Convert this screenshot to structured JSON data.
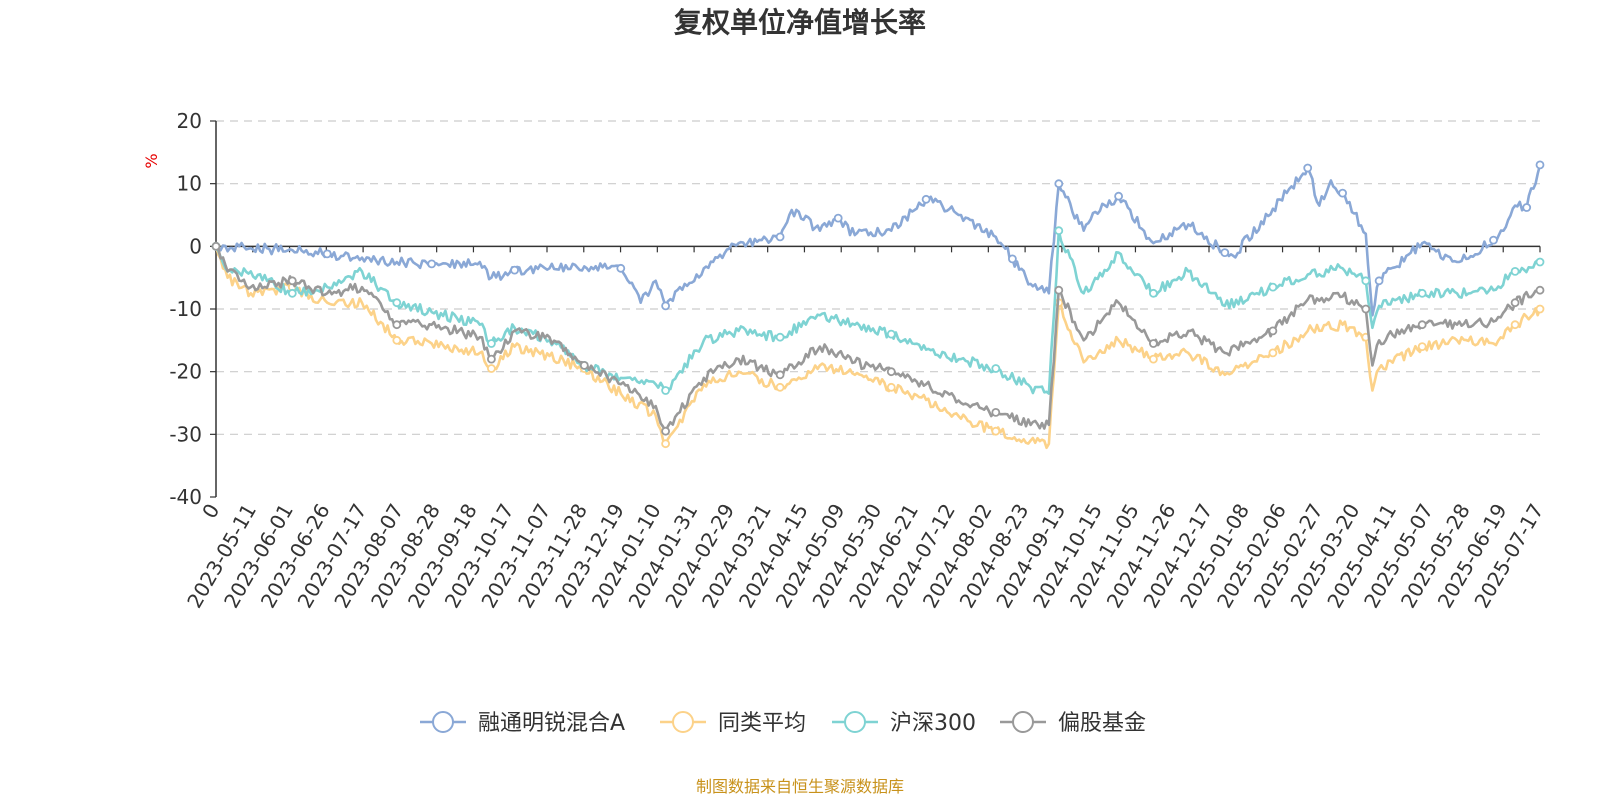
{
  "chart_data": {
    "type": "line",
    "title": "复权单位净值增长率",
    "ylabel": "%",
    "ylim": [
      -40,
      20
    ],
    "yticks": [
      20,
      10,
      0,
      -10,
      -20,
      -30,
      -40
    ],
    "grid": true,
    "legend_position": "bottom",
    "source": "制图数据来自恒生聚源数据库",
    "x_start": "2023-05-11",
    "x_end": "2025-07-17",
    "x_tick_labels": [
      "0",
      "2023-05-11",
      "2023-06-01",
      "2023-06-26",
      "2023-07-17",
      "2023-08-07",
      "2023-08-28",
      "2023-09-18",
      "2023-10-17",
      "2023-11-07",
      "2023-11-28",
      "2023-12-19",
      "2024-01-10",
      "2024-01-31",
      "2024-02-29",
      "2024-03-21",
      "2024-04-15",
      "2024-05-09",
      "2024-05-30",
      "2024-06-21",
      "2024-07-12",
      "2024-08-02",
      "2024-08-23",
      "2024-09-13",
      "2024-10-15",
      "2024-11-05",
      "2024-11-26",
      "2024-12-17",
      "2025-01-08",
      "2025-02-06",
      "2025-02-27",
      "2025-03-20",
      "2025-04-11",
      "2025-05-07",
      "2025-05-28",
      "2025-06-19",
      "2025-07-17"
    ],
    "series": [
      {
        "name": "融通明锐混合A",
        "color": "#8aa8d6",
        "points": [
          [
            "2023-05-11",
            0
          ],
          [
            "2023-06-01",
            -0.3
          ],
          [
            "2023-06-26",
            -0.6
          ],
          [
            "2023-07-17",
            -1.2
          ],
          [
            "2023-08-07",
            -1.8
          ],
          [
            "2023-08-28",
            -2.5
          ],
          [
            "2023-09-18",
            -2.8
          ],
          [
            "2023-10-17",
            -2.5
          ],
          [
            "2023-10-24",
            -5
          ],
          [
            "2023-11-07",
            -3.8
          ],
          [
            "2023-11-28",
            -3.5
          ],
          [
            "2023-12-19",
            -3.2
          ],
          [
            "2024-01-10",
            -3.5
          ],
          [
            "2024-01-22",
            -9
          ],
          [
            "2024-01-31",
            -5.5
          ],
          [
            "2024-02-06",
            -9.5
          ],
          [
            "2024-02-29",
            -3.5
          ],
          [
            "2024-03-21",
            0.5
          ],
          [
            "2024-04-15",
            1.5
          ],
          [
            "2024-04-22",
            5.8
          ],
          [
            "2024-05-09",
            2.5
          ],
          [
            "2024-05-20",
            4.5
          ],
          [
            "2024-05-30",
            1.8
          ],
          [
            "2024-06-21",
            2.5
          ],
          [
            "2024-07-12",
            7.5
          ],
          [
            "2024-08-02",
            5
          ],
          [
            "2024-08-23",
            1.5
          ],
          [
            "2024-09-02",
            -2
          ],
          [
            "2024-09-13",
            -6
          ],
          [
            "2024-09-24",
            -7.5
          ],
          [
            "2024-09-30",
            10
          ],
          [
            "2024-10-15",
            2.5
          ],
          [
            "2024-10-22",
            5.5
          ],
          [
            "2024-11-05",
            8
          ],
          [
            "2024-11-26",
            0.5
          ],
          [
            "2024-12-17",
            3.5
          ],
          [
            "2025-01-08",
            -1
          ],
          [
            "2025-01-13",
            -1.5
          ],
          [
            "2025-02-06",
            6
          ],
          [
            "2025-02-27",
            12.5
          ],
          [
            "2025-03-06",
            6.5
          ],
          [
            "2025-03-13",
            10.5
          ],
          [
            "2025-03-20",
            8.5
          ],
          [
            "2025-04-03",
            2
          ],
          [
            "2025-04-07",
            -11
          ],
          [
            "2025-04-11",
            -5.5
          ],
          [
            "2025-05-07",
            0.5
          ],
          [
            "2025-05-28",
            -2.5
          ],
          [
            "2025-06-19",
            1
          ],
          [
            "2025-06-25",
            2.5
          ],
          [
            "2025-07-02",
            6.5
          ],
          [
            "2025-07-09",
            6.2
          ],
          [
            "2025-07-17",
            13
          ]
        ]
      },
      {
        "name": "同类平均",
        "color": "#fcd289",
        "points": [
          [
            "2023-05-11",
            0
          ],
          [
            "2023-05-18",
            -5
          ],
          [
            "2023-06-01",
            -7.5
          ],
          [
            "2023-06-26",
            -6.5
          ],
          [
            "2023-07-17",
            -9
          ],
          [
            "2023-08-07",
            -9
          ],
          [
            "2023-08-28",
            -15
          ],
          [
            "2023-09-18",
            -15.5
          ],
          [
            "2023-10-17",
            -17
          ],
          [
            "2023-10-24",
            -19.5
          ],
          [
            "2023-11-07",
            -16
          ],
          [
            "2023-11-28",
            -17.5
          ],
          [
            "2023-12-19",
            -19.5
          ],
          [
            "2024-01-10",
            -23.5
          ],
          [
            "2024-01-31",
            -27
          ],
          [
            "2024-02-06",
            -31.5
          ],
          [
            "2024-02-29",
            -22
          ],
          [
            "2024-03-21",
            -20
          ],
          [
            "2024-04-15",
            -22.5
          ],
          [
            "2024-05-09",
            -19
          ],
          [
            "2024-05-30",
            -20.5
          ],
          [
            "2024-06-21",
            -22.5
          ],
          [
            "2024-07-12",
            -24.5
          ],
          [
            "2024-08-02",
            -27.5
          ],
          [
            "2024-08-23",
            -29.5
          ],
          [
            "2024-09-13",
            -31
          ],
          [
            "2024-09-24",
            -31.5
          ],
          [
            "2024-09-30",
            -9
          ],
          [
            "2024-10-15",
            -18.5
          ],
          [
            "2024-11-05",
            -15
          ],
          [
            "2024-11-26",
            -18
          ],
          [
            "2024-12-17",
            -17
          ],
          [
            "2025-01-08",
            -20.5
          ],
          [
            "2025-02-06",
            -17
          ],
          [
            "2025-02-27",
            -13.5
          ],
          [
            "2025-03-20",
            -12.5
          ],
          [
            "2025-04-03",
            -14.5
          ],
          [
            "2025-04-07",
            -23
          ],
          [
            "2025-04-11",
            -19.5
          ],
          [
            "2025-05-07",
            -16
          ],
          [
            "2025-05-28",
            -15
          ],
          [
            "2025-06-19",
            -15.5
          ],
          [
            "2025-07-02",
            -12.5
          ],
          [
            "2025-07-17",
            -10
          ]
        ]
      },
      {
        "name": "沪深300",
        "color": "#7ed3d3",
        "points": [
          [
            "2023-05-11",
            0
          ],
          [
            "2023-05-18",
            -4
          ],
          [
            "2023-06-01",
            -4
          ],
          [
            "2023-06-26",
            -7.5
          ],
          [
            "2023-07-17",
            -6.5
          ],
          [
            "2023-08-07",
            -4
          ],
          [
            "2023-08-28",
            -9
          ],
          [
            "2023-09-18",
            -10.5
          ],
          [
            "2023-10-17",
            -12.5
          ],
          [
            "2023-10-24",
            -15.5
          ],
          [
            "2023-11-07",
            -13
          ],
          [
            "2023-11-28",
            -15
          ],
          [
            "2023-12-19",
            -19
          ],
          [
            "2024-01-10",
            -21
          ],
          [
            "2024-01-31",
            -22
          ],
          [
            "2024-02-06",
            -23
          ],
          [
            "2024-02-29",
            -15
          ],
          [
            "2024-03-21",
            -13.5
          ],
          [
            "2024-04-15",
            -14.5
          ],
          [
            "2024-05-09",
            -11
          ],
          [
            "2024-05-30",
            -12.5
          ],
          [
            "2024-06-21",
            -14
          ],
          [
            "2024-07-12",
            -16.5
          ],
          [
            "2024-08-02",
            -18
          ],
          [
            "2024-08-23",
            -19.5
          ],
          [
            "2024-09-13",
            -22.5
          ],
          [
            "2024-09-24",
            -23.5
          ],
          [
            "2024-09-30",
            2.5
          ],
          [
            "2024-10-15",
            -7.5
          ],
          [
            "2024-11-05",
            -1
          ],
          [
            "2024-11-26",
            -7.5
          ],
          [
            "2024-12-17",
            -4
          ],
          [
            "2025-01-08",
            -9.5
          ],
          [
            "2025-02-06",
            -6.5
          ],
          [
            "2025-02-27",
            -4.5
          ],
          [
            "2025-03-20",
            -3.5
          ],
          [
            "2025-04-03",
            -5.5
          ],
          [
            "2025-04-07",
            -13
          ],
          [
            "2025-04-11",
            -9.5
          ],
          [
            "2025-05-07",
            -7.5
          ],
          [
            "2025-05-28",
            -7.5
          ],
          [
            "2025-06-19",
            -7
          ],
          [
            "2025-07-02",
            -4
          ],
          [
            "2025-07-17",
            -2.5
          ]
        ]
      },
      {
        "name": "偏股基金",
        "color": "#999999",
        "points": [
          [
            "2023-05-11",
            0
          ],
          [
            "2023-05-18",
            -4
          ],
          [
            "2023-06-01",
            -6.5
          ],
          [
            "2023-06-26",
            -5.5
          ],
          [
            "2023-07-17",
            -7.5
          ],
          [
            "2023-08-07",
            -6.5
          ],
          [
            "2023-08-28",
            -12.5
          ],
          [
            "2023-09-18",
            -12.5
          ],
          [
            "2023-10-17",
            -14.5
          ],
          [
            "2023-10-24",
            -18
          ],
          [
            "2023-11-07",
            -13.5
          ],
          [
            "2023-11-28",
            -14.5
          ],
          [
            "2023-12-19",
            -19
          ],
          [
            "2024-01-10",
            -22
          ],
          [
            "2024-01-31",
            -25.5
          ],
          [
            "2024-02-06",
            -29.5
          ],
          [
            "2024-02-29",
            -21
          ],
          [
            "2024-03-21",
            -18
          ],
          [
            "2024-04-15",
            -20.5
          ],
          [
            "2024-05-09",
            -16
          ],
          [
            "2024-05-30",
            -18.5
          ],
          [
            "2024-06-21",
            -20
          ],
          [
            "2024-07-12",
            -22
          ],
          [
            "2024-08-02",
            -25
          ],
          [
            "2024-08-23",
            -26.5
          ],
          [
            "2024-09-13",
            -28.5
          ],
          [
            "2024-09-24",
            -28.5
          ],
          [
            "2024-09-30",
            -7
          ],
          [
            "2024-10-15",
            -15
          ],
          [
            "2024-11-05",
            -9
          ],
          [
            "2024-11-26",
            -15.5
          ],
          [
            "2024-12-17",
            -13.5
          ],
          [
            "2025-01-08",
            -17
          ],
          [
            "2025-02-06",
            -13.5
          ],
          [
            "2025-02-27",
            -8.5
          ],
          [
            "2025-03-20",
            -8
          ],
          [
            "2025-04-03",
            -10
          ],
          [
            "2025-04-07",
            -19
          ],
          [
            "2025-04-11",
            -15
          ],
          [
            "2025-05-07",
            -12.5
          ],
          [
            "2025-05-28",
            -12.5
          ],
          [
            "2025-06-19",
            -12
          ],
          [
            "2025-07-02",
            -9
          ],
          [
            "2025-07-17",
            -7
          ]
        ]
      }
    ]
  }
}
